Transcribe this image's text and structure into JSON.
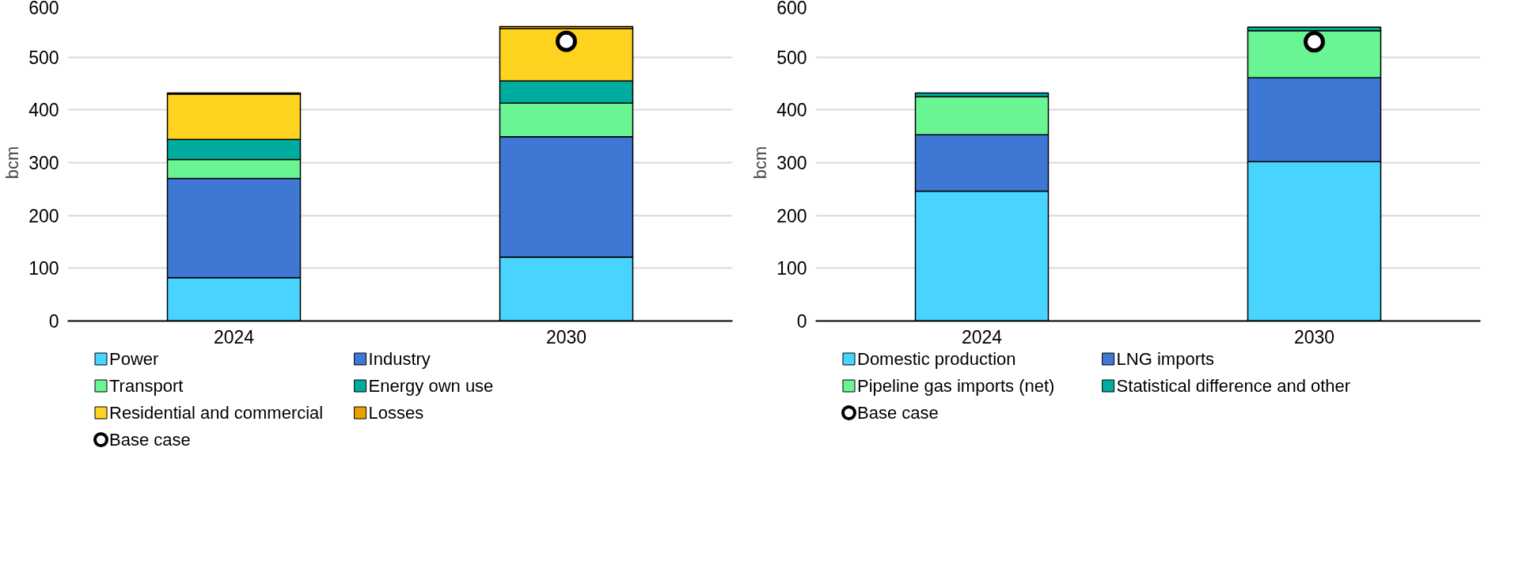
{
  "chart_data": [
    {
      "type": "bar",
      "stacked": true,
      "categories": [
        "2024",
        "2030"
      ],
      "ylabel": "bcm",
      "ylim": [
        0,
        600
      ],
      "yticks": [
        0,
        100,
        200,
        300,
        400,
        500,
        600
      ],
      "grid": "y",
      "legend": "bottom",
      "series": [
        {
          "name": "Power",
          "color": "#48d4ff",
          "values": [
            82,
            121
          ]
        },
        {
          "name": "Industry",
          "color": "#3f78d4",
          "values": [
            188,
            228
          ]
        },
        {
          "name": "Transport",
          "color": "#6af595",
          "values": [
            36,
            64
          ]
        },
        {
          "name": "Energy own use",
          "color": "#00ab9f",
          "values": [
            38,
            42
          ]
        },
        {
          "name": "Residential and commercial",
          "color": "#fed320",
          "values": [
            86,
            99
          ]
        },
        {
          "name": "Losses",
          "color": "#e8a200",
          "values": [
            2,
            4
          ]
        },
        {
          "name": "Base case",
          "type": "scatter",
          "marker": "circle",
          "color": "#ffffff",
          "values": [
            null,
            530
          ]
        }
      ]
    },
    {
      "type": "bar",
      "stacked": true,
      "categories": [
        "2024",
        "2030"
      ],
      "ylabel": "bcm",
      "ylim": [
        0,
        600
      ],
      "yticks": [
        0,
        100,
        200,
        300,
        400,
        500,
        600
      ],
      "grid": "y",
      "legend": "bottom",
      "series": [
        {
          "name": "Domestic production",
          "color": "#48d4ff",
          "values": [
            246,
            302
          ]
        },
        {
          "name": "LNG imports",
          "color": "#3f78d4",
          "values": [
            107,
            159
          ]
        },
        {
          "name": "Pipeline gas imports (net)",
          "color": "#6af595",
          "values": [
            72,
            89
          ]
        },
        {
          "name": "Statistical difference and other",
          "color": "#00ab9f",
          "values": [
            7,
            7
          ]
        },
        {
          "name": "Base case",
          "type": "scatter",
          "marker": "circle",
          "color": "#ffffff",
          "values": [
            null,
            529
          ]
        }
      ]
    }
  ]
}
